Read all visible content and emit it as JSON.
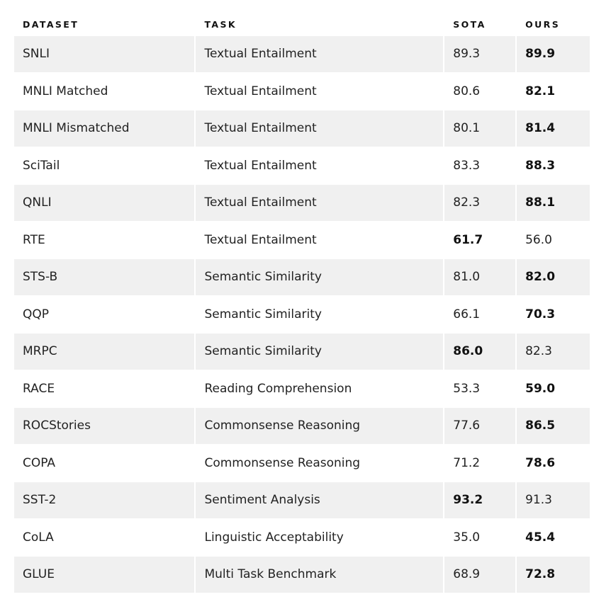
{
  "table": {
    "headers": {
      "dataset": "DATASET",
      "task": "TASK",
      "sota": "SOTA",
      "ours": "OURS"
    },
    "rows": [
      {
        "dataset": "SNLI",
        "task": "Textual Entailment",
        "sota": "89.3",
        "ours": "89.9",
        "bold": "ours"
      },
      {
        "dataset": "MNLI Matched",
        "task": "Textual Entailment",
        "sota": "80.6",
        "ours": "82.1",
        "bold": "ours"
      },
      {
        "dataset": "MNLI Mismatched",
        "task": "Textual Entailment",
        "sota": "80.1",
        "ours": "81.4",
        "bold": "ours"
      },
      {
        "dataset": "SciTail",
        "task": "Textual Entailment",
        "sota": "83.3",
        "ours": "88.3",
        "bold": "ours"
      },
      {
        "dataset": "QNLI",
        "task": "Textual Entailment",
        "sota": "82.3",
        "ours": "88.1",
        "bold": "ours"
      },
      {
        "dataset": "RTE",
        "task": "Textual Entailment",
        "sota": "61.7",
        "ours": "56.0",
        "bold": "sota"
      },
      {
        "dataset": "STS-B",
        "task": "Semantic Similarity",
        "sota": "81.0",
        "ours": "82.0",
        "bold": "ours"
      },
      {
        "dataset": "QQP",
        "task": "Semantic Similarity",
        "sota": "66.1",
        "ours": "70.3",
        "bold": "ours"
      },
      {
        "dataset": "MRPC",
        "task": "Semantic Similarity",
        "sota": "86.0",
        "ours": "82.3",
        "bold": "sota"
      },
      {
        "dataset": "RACE",
        "task": "Reading Comprehension",
        "sota": "53.3",
        "ours": "59.0",
        "bold": "ours"
      },
      {
        "dataset": "ROCStories",
        "task": "Commonsense Reasoning",
        "sota": "77.6",
        "ours": "86.5",
        "bold": "ours"
      },
      {
        "dataset": "COPA",
        "task": "Commonsense Reasoning",
        "sota": "71.2",
        "ours": "78.6",
        "bold": "ours"
      },
      {
        "dataset": "SST-2",
        "task": "Sentiment Analysis",
        "sota": "93.2",
        "ours": "91.3",
        "bold": "sota"
      },
      {
        "dataset": "CoLA",
        "task": "Linguistic Acceptability",
        "sota": "35.0",
        "ours": "45.4",
        "bold": "ours"
      },
      {
        "dataset": "GLUE",
        "task": "Multi Task Benchmark",
        "sota": "68.9",
        "ours": "72.8",
        "bold": "ours"
      }
    ]
  },
  "colors": {
    "row_shade": "#f0f0f0",
    "text": "#222222",
    "header": "#111111"
  }
}
